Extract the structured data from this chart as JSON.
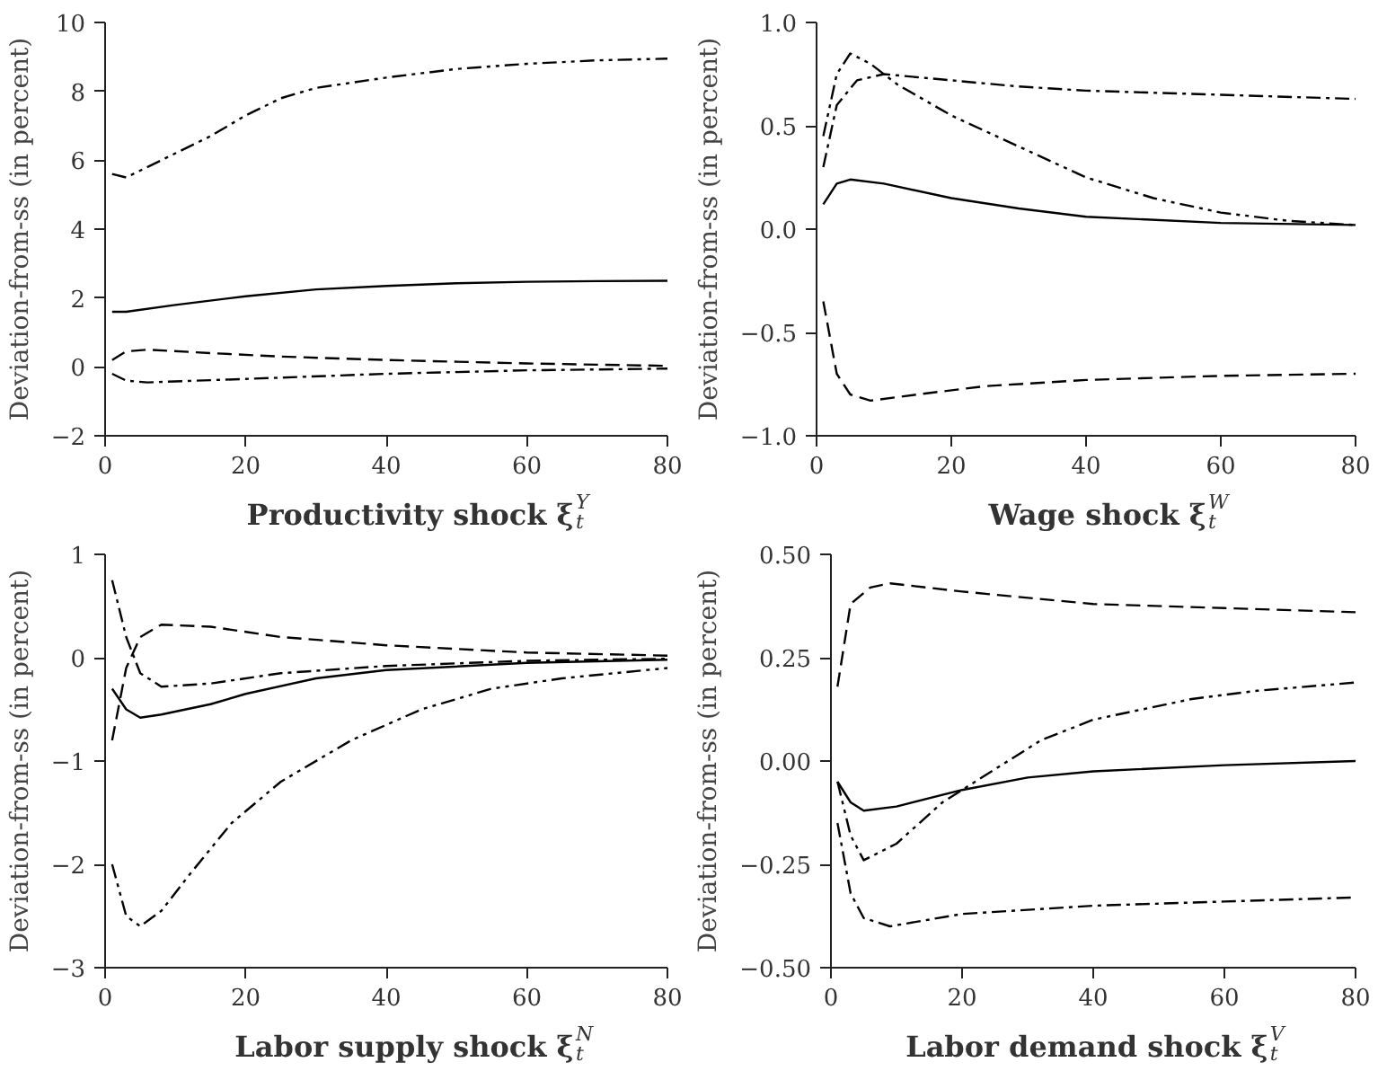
{
  "chart_data": [
    {
      "type": "line",
      "xlabel": "Productivity shock ξ$_{t}$$^{Y}$",
      "ylabel": "Deviation-from-ss (in percent)",
      "xlim": [
        0,
        80
      ],
      "ylim": [
        -2,
        10
      ],
      "xticks": [
        0,
        20,
        40,
        60,
        80
      ],
      "yticks": [
        {
          "value": -2,
          "label": "−2"
        },
        0,
        2,
        4,
        6,
        8,
        10
      ],
      "grid": false,
      "series": [
        {
          "color": "#000000",
          "line_style": "solid",
          "x": [
            1,
            3,
            10,
            20,
            30,
            40,
            50,
            60,
            70,
            80
          ],
          "values": [
            1.6,
            1.6,
            1.8,
            2.05,
            2.25,
            2.35,
            2.43,
            2.47,
            2.49,
            2.5
          ]
        },
        {
          "color": "#000000",
          "line_style": "dashed",
          "x": [
            1,
            3,
            6,
            15,
            25,
            40,
            60,
            80
          ],
          "values": [
            0.2,
            0.45,
            0.5,
            0.4,
            0.3,
            0.2,
            0.1,
            0.03
          ]
        },
        {
          "color": "#000000",
          "line_style": "dashdot",
          "x": [
            1,
            3,
            6,
            20,
            40,
            60,
            80
          ],
          "values": [
            -0.2,
            -0.4,
            -0.45,
            -0.35,
            -0.2,
            -0.1,
            -0.05
          ]
        },
        {
          "color": "#000000",
          "line_style": "dashdotdot",
          "x": [
            1,
            3,
            8,
            15,
            20,
            25,
            30,
            40,
            50,
            60,
            70,
            80
          ],
          "values": [
            5.6,
            5.5,
            6.0,
            6.7,
            7.3,
            7.8,
            8.1,
            8.4,
            8.65,
            8.8,
            8.9,
            8.95
          ]
        }
      ]
    },
    {
      "type": "line",
      "xlabel": "Wage shock ξ$_{t}$$^{W}$",
      "ylabel": "Deviation-from-ss (in percent)",
      "xlim": [
        0,
        80
      ],
      "ylim": [
        -1,
        1
      ],
      "xticks": [
        0,
        20,
        40,
        60,
        80
      ],
      "yticks": [
        {
          "value": -1,
          "label": "−1.0"
        },
        {
          "value": -0.5,
          "label": "−0.5"
        },
        {
          "value": 0,
          "label": "0.0"
        },
        {
          "value": 0.5,
          "label": "0.5"
        },
        {
          "value": 1,
          "label": "1.0"
        }
      ],
      "grid": false,
      "series": [
        {
          "color": "#000000",
          "line_style": "solid",
          "x": [
            1,
            3,
            5,
            10,
            20,
            30,
            40,
            60,
            80
          ],
          "values": [
            0.12,
            0.22,
            0.24,
            0.22,
            0.15,
            0.1,
            0.06,
            0.03,
            0.02
          ]
        },
        {
          "color": "#000000",
          "line_style": "dashed",
          "x": [
            1,
            3,
            5,
            8,
            15,
            25,
            40,
            60,
            80
          ],
          "values": [
            -0.35,
            -0.7,
            -0.8,
            -0.83,
            -0.8,
            -0.76,
            -0.73,
            -0.71,
            -0.7
          ]
        },
        {
          "color": "#000000",
          "line_style": "dashdot",
          "x": [
            1,
            3,
            6,
            10,
            20,
            30,
            40,
            60,
            80
          ],
          "values": [
            0.3,
            0.6,
            0.72,
            0.75,
            0.72,
            0.69,
            0.67,
            0.65,
            0.63
          ]
        },
        {
          "color": "#000000",
          "line_style": "dashdotdot",
          "x": [
            1,
            3,
            5,
            8,
            12,
            20,
            30,
            40,
            50,
            60,
            70,
            80
          ],
          "values": [
            0.45,
            0.75,
            0.85,
            0.8,
            0.7,
            0.55,
            0.4,
            0.25,
            0.15,
            0.08,
            0.04,
            0.02
          ]
        }
      ]
    },
    {
      "type": "line",
      "xlabel": "Labor supply shock ξ$_{t}$$^{N}$",
      "ylabel": "Deviation-from-ss (in percent)",
      "xlim": [
        0,
        80
      ],
      "ylim": [
        -3,
        1
      ],
      "xticks": [
        0,
        20,
        40,
        60,
        80
      ],
      "yticks": [
        {
          "value": -3,
          "label": "−3"
        },
        {
          "value": -2,
          "label": "−2"
        },
        {
          "value": -1,
          "label": "−1"
        },
        0,
        1
      ],
      "grid": false,
      "series": [
        {
          "color": "#000000",
          "line_style": "solid",
          "x": [
            1,
            3,
            5,
            8,
            15,
            20,
            30,
            40,
            60,
            80
          ],
          "values": [
            -0.3,
            -0.5,
            -0.58,
            -0.55,
            -0.45,
            -0.35,
            -0.2,
            -0.12,
            -0.05,
            -0.02
          ]
        },
        {
          "color": "#000000",
          "line_style": "dashed",
          "x": [
            1,
            3,
            5,
            8,
            15,
            25,
            40,
            60,
            80
          ],
          "values": [
            -0.8,
            -0.1,
            0.2,
            0.32,
            0.3,
            0.2,
            0.12,
            0.05,
            0.02
          ]
        },
        {
          "color": "#000000",
          "line_style": "dashdot",
          "x": [
            1,
            3,
            5,
            8,
            15,
            25,
            40,
            60,
            80
          ],
          "values": [
            0.75,
            0.2,
            -0.15,
            -0.28,
            -0.25,
            -0.15,
            -0.08,
            -0.03,
            -0.01
          ]
        },
        {
          "color": "#000000",
          "line_style": "dashdotdot",
          "x": [
            1,
            3,
            5,
            8,
            12,
            18,
            25,
            35,
            45,
            55,
            65,
            80
          ],
          "values": [
            -2.0,
            -2.5,
            -2.6,
            -2.45,
            -2.1,
            -1.6,
            -1.2,
            -0.8,
            -0.5,
            -0.3,
            -0.2,
            -0.1
          ]
        }
      ]
    },
    {
      "type": "line",
      "xlabel": "Labor demand shock ξ$_{t}$$^{V}$",
      "ylabel": "Deviation-from-ss (in percent)",
      "xlim": [
        0,
        80
      ],
      "ylim": [
        -0.5,
        0.5
      ],
      "xticks": [
        0,
        20,
        40,
        60,
        80
      ],
      "yticks": [
        {
          "value": -0.5,
          "label": "−0.50"
        },
        {
          "value": -0.25,
          "label": "−0.25"
        },
        {
          "value": 0,
          "label": "0.00"
        },
        {
          "value": 0.25,
          "label": "0.25"
        },
        {
          "value": 0.5,
          "label": "0.50"
        }
      ],
      "grid": false,
      "series": [
        {
          "color": "#000000",
          "line_style": "solid",
          "x": [
            1,
            3,
            5,
            10,
            20,
            30,
            40,
            60,
            80
          ],
          "values": [
            -0.05,
            -0.1,
            -0.12,
            -0.11,
            -0.07,
            -0.04,
            -0.025,
            -0.01,
            0
          ]
        },
        {
          "color": "#000000",
          "line_style": "dashed",
          "x": [
            1,
            3,
            6,
            9,
            20,
            40,
            60,
            80
          ],
          "values": [
            0.18,
            0.38,
            0.42,
            0.43,
            0.41,
            0.38,
            0.37,
            0.36
          ]
        },
        {
          "color": "#000000",
          "line_style": "dashdot",
          "x": [
            1,
            3,
            5,
            9,
            20,
            40,
            60,
            80
          ],
          "values": [
            -0.15,
            -0.32,
            -0.38,
            -0.4,
            -0.37,
            -0.35,
            -0.34,
            -0.33
          ]
        },
        {
          "color": "#000000",
          "line_style": "dashdotdot",
          "x": [
            1,
            3,
            5,
            10,
            17,
            25,
            32,
            40,
            55,
            65,
            80
          ],
          "values": [
            -0.05,
            -0.18,
            -0.24,
            -0.2,
            -0.1,
            -0.02,
            0.05,
            0.1,
            0.15,
            0.17,
            0.19
          ]
        }
      ]
    }
  ]
}
